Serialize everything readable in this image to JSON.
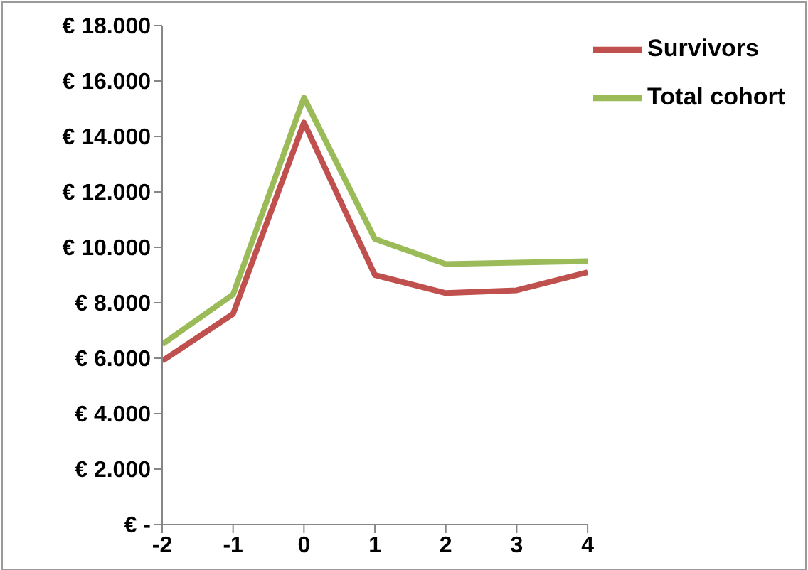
{
  "chart_data": {
    "type": "line",
    "categories": [
      "-2",
      "-1",
      "0",
      "1",
      "2",
      "3",
      "4"
    ],
    "series": [
      {
        "name": "Survivors",
        "color": "#c0504d",
        "values": [
          5900,
          7600,
          14500,
          9000,
          8350,
          8450,
          9100
        ]
      },
      {
        "name": "Total cohort",
        "color": "#9bbb59",
        "values": [
          6500,
          8300,
          15400,
          10300,
          9400,
          9450,
          9500
        ]
      }
    ],
    "ylim": [
      0,
      18000
    ],
    "yticks": [
      {
        "value": 0,
        "label": "€ -"
      },
      {
        "value": 2000,
        "label": "€ 2.000"
      },
      {
        "value": 4000,
        "label": "€ 4.000"
      },
      {
        "value": 6000,
        "label": "€ 6.000"
      },
      {
        "value": 8000,
        "label": "€ 8.000"
      },
      {
        "value": 10000,
        "label": "€ 10.000"
      },
      {
        "value": 12000,
        "label": "€ 12.000"
      },
      {
        "value": 14000,
        "label": "€ 14.000"
      },
      {
        "value": 16000,
        "label": "€ 16.000"
      },
      {
        "value": 18000,
        "label": "€ 18.000"
      }
    ],
    "legend": "top right",
    "marker": "none",
    "line_style": "solid",
    "grid": false
  }
}
